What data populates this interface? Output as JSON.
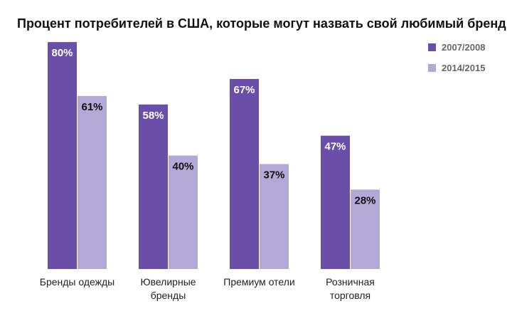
{
  "chart_data": {
    "type": "bar",
    "title": "Процент потребителей в США, которые могут назвать свой любимый бренд",
    "xlabel": "",
    "ylabel": "",
    "ylim": [
      0,
      100
    ],
    "grid": false,
    "legend_position": "top-right",
    "value_suffix": "%",
    "categories": [
      [
        "Бренды одежды"
      ],
      [
        "Ювелирные",
        "бренды"
      ],
      [
        "Премиум отели"
      ],
      [
        "Розничная",
        "торговля"
      ]
    ],
    "series": [
      {
        "name": "2007/2008",
        "color": "#6a4fa8",
        "label_color": "#ffffff",
        "values": [
          80,
          58,
          67,
          47
        ]
      },
      {
        "name": "2014/2015",
        "color": "#b3a8d6",
        "label_color": "#111111",
        "values": [
          61,
          40,
          37,
          28
        ]
      }
    ]
  }
}
